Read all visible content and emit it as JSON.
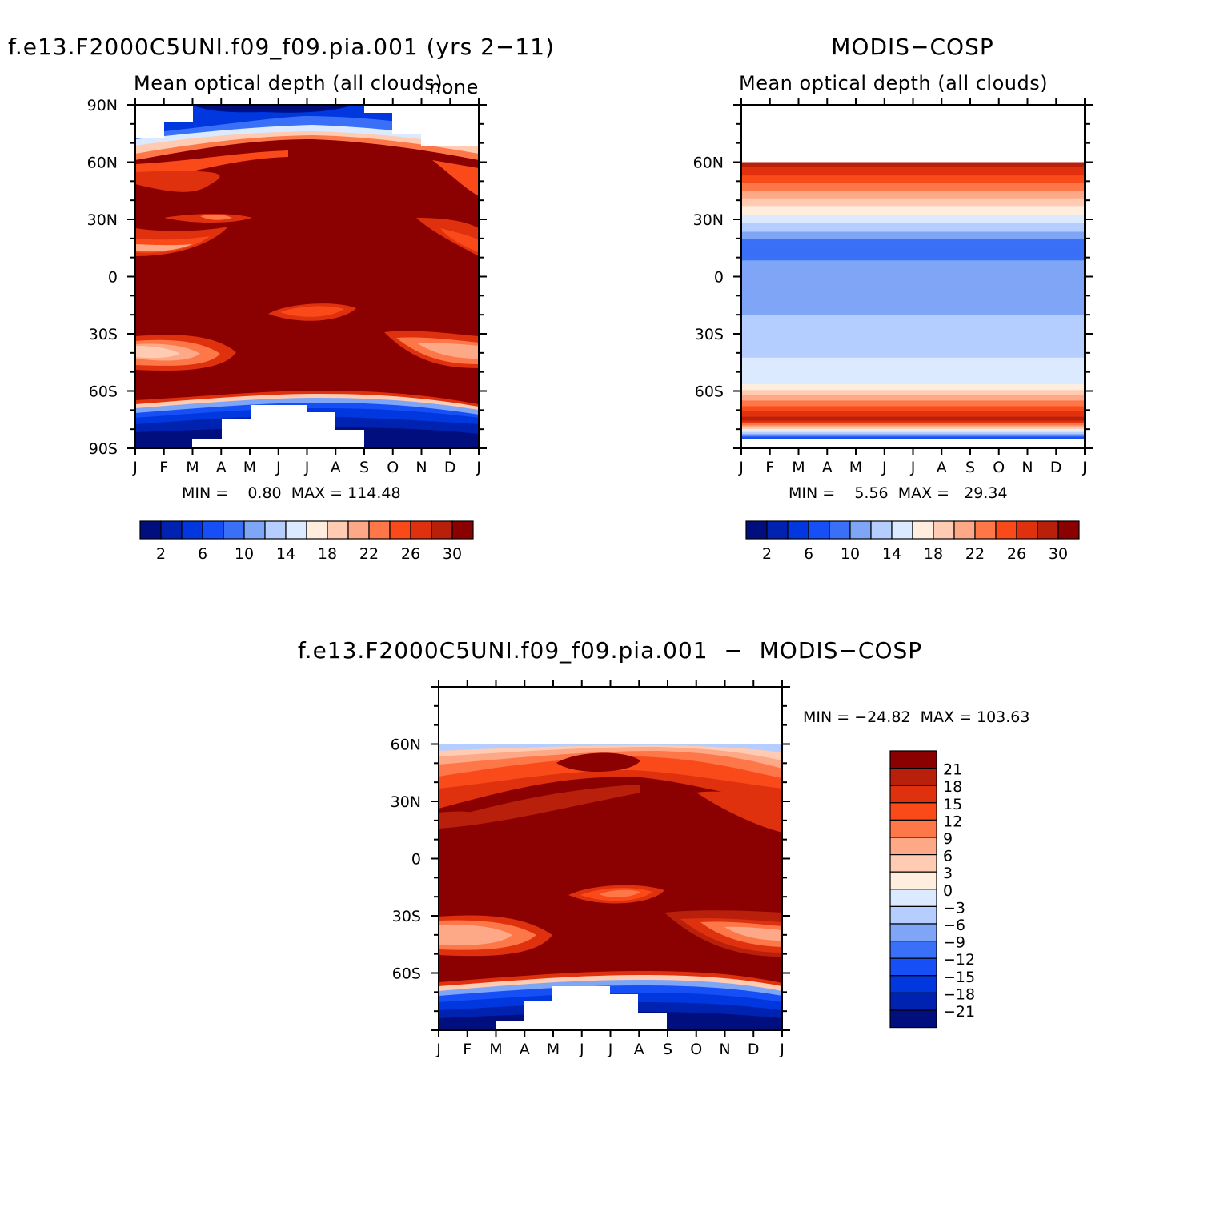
{
  "months": [
    "J",
    "F",
    "M",
    "A",
    "M",
    "J",
    "J",
    "A",
    "S",
    "O",
    "N",
    "D",
    "J"
  ],
  "lat_ticks": [
    "90N",
    "60N",
    "30N",
    "0",
    "30S",
    "60S",
    "90S"
  ],
  "palette_abs": [
    "#000e7e",
    "#0022b0",
    "#0037de",
    "#164ff6",
    "#3a6ff8",
    "#7fa5f6",
    "#b5ceff",
    "#dbeaff",
    "#ffeedd",
    "#ffcbb2",
    "#fda886",
    "#fe7748",
    "#fb4a1a",
    "#e0310e",
    "#b9200c",
    "#8b0000"
  ],
  "palette_diff": [
    "#8b0000",
    "#b9200c",
    "#e0310e",
    "#fb4a1a",
    "#fe7748",
    "#fda886",
    "#ffcbb2",
    "#ffeedd",
    "#dbeaff",
    "#b5ceff",
    "#7fa5f6",
    "#3a6ff8",
    "#164ff6",
    "#0037de",
    "#0022b0",
    "#000e7e"
  ],
  "panel1": {
    "title": "f.e13.F2000C5UNI.f09_f09.pia.001 (yrs 2−11)",
    "subtitle": "Mean optical depth (all clouds)",
    "corner": "none",
    "stats": "MIN =    0.80  MAX = 114.48",
    "lat_labels": [
      "90N",
      "60N",
      "30N",
      "0",
      "30S",
      "60S",
      "90S"
    ],
    "colorbar_labels": [
      "2",
      "6",
      "10",
      "14",
      "18",
      "22",
      "26",
      "30"
    ]
  },
  "panel2": {
    "title": "MODIS−COSP",
    "subtitle": "Mean optical depth (all clouds)",
    "stats": "MIN =    5.56  MAX =   29.34",
    "lat_labels": [
      "60N",
      "30N",
      "0",
      "30S",
      "60S"
    ],
    "colorbar_labels": [
      "2",
      "6",
      "10",
      "14",
      "18",
      "22",
      "26",
      "30"
    ]
  },
  "panel3": {
    "title": "f.e13.F2000C5UNI.f09_f09.pia.001  −  MODIS−COSP",
    "stats": "MIN = −24.82  MAX = 103.63",
    "lat_labels": [
      "60N",
      "30N",
      "0",
      "30S",
      "60S"
    ],
    "colorbar_labels": [
      "21",
      "18",
      "15",
      "12",
      "9",
      "6",
      "3",
      "0",
      "−3",
      "−6",
      "−9",
      "−12",
      "−15",
      "−18",
      "−21"
    ]
  },
  "chart_data": [
    {
      "type": "heatmap",
      "title": "f.e13.F2000C5UNI.f09_f09.pia.001 (yrs 2−11)",
      "subtitle": "Mean optical depth (all clouds)",
      "x": [
        "J",
        "F",
        "M",
        "A",
        "M",
        "J",
        "J",
        "A",
        "S",
        "O",
        "N",
        "D",
        "J"
      ],
      "y": [
        "90N",
        "60N",
        "30N",
        "0",
        "30S",
        "60S",
        "90S"
      ],
      "colorbar": [
        2,
        6,
        10,
        14,
        18,
        22,
        26,
        30
      ],
      "min": 0.8,
      "max": 114.48,
      "latitude_profile_mean": [
        {
          "lat": 80,
          "value": 6
        },
        {
          "lat": 65,
          "value": 20
        },
        {
          "lat": 55,
          "value": 27
        },
        {
          "lat": 45,
          "value": 31
        },
        {
          "lat": 20,
          "value": 28
        },
        {
          "lat": 0,
          "value": 32
        },
        {
          "lat": -20,
          "value": 32
        },
        {
          "lat": -38,
          "value": 22
        },
        {
          "lat": -55,
          "value": 32
        },
        {
          "lat": -65,
          "value": 16
        },
        {
          "lat": -80,
          "value": 4
        }
      ]
    },
    {
      "type": "heatmap",
      "title": "MODIS−COSP",
      "subtitle": "Mean optical depth (all clouds)",
      "x": [
        "J",
        "F",
        "M",
        "A",
        "M",
        "J",
        "J",
        "A",
        "S",
        "O",
        "N",
        "D",
        "J"
      ],
      "y": [
        "60N",
        "30N",
        "0",
        "30S",
        "60S"
      ],
      "colorbar": [
        2,
        6,
        10,
        14,
        18,
        22,
        26,
        30
      ],
      "min": 5.56,
      "max": 29.34,
      "latitude_profile": [
        {
          "lat": 60,
          "value": 29.3
        },
        {
          "lat": 45,
          "value": 22
        },
        {
          "lat": 35,
          "value": 17
        },
        {
          "lat": 28,
          "value": 14
        },
        {
          "lat": 15,
          "value": 8
        },
        {
          "lat": 5,
          "value": 11
        },
        {
          "lat": -10,
          "value": 11
        },
        {
          "lat": -30,
          "value": 13
        },
        {
          "lat": -55,
          "value": 15
        },
        {
          "lat": -75,
          "value": 29
        },
        {
          "lat": -85,
          "value": 6
        }
      ]
    },
    {
      "type": "heatmap",
      "title": "f.e13.F2000C5UNI.f09_f09.pia.001  −  MODIS−COSP",
      "x": [
        "J",
        "F",
        "M",
        "A",
        "M",
        "J",
        "J",
        "A",
        "S",
        "O",
        "N",
        "D",
        "J"
      ],
      "y": [
        "60N",
        "30N",
        "0",
        "30S",
        "60S"
      ],
      "colorbar": [
        21,
        18,
        15,
        12,
        9,
        6,
        3,
        0,
        -3,
        -6,
        -9,
        -12,
        -15,
        -18,
        -21
      ],
      "min": -24.82,
      "max": 103.63,
      "latitude_profile_mean": [
        {
          "lat": 58,
          "value": -6
        },
        {
          "lat": 50,
          "value": 6
        },
        {
          "lat": 35,
          "value": 14
        },
        {
          "lat": 15,
          "value": 21
        },
        {
          "lat": 0,
          "value": 22
        },
        {
          "lat": -20,
          "value": 21
        },
        {
          "lat": -38,
          "value": 9
        },
        {
          "lat": -55,
          "value": 22
        },
        {
          "lat": -68,
          "value": -3
        },
        {
          "lat": -80,
          "value": -21
        }
      ]
    }
  ]
}
